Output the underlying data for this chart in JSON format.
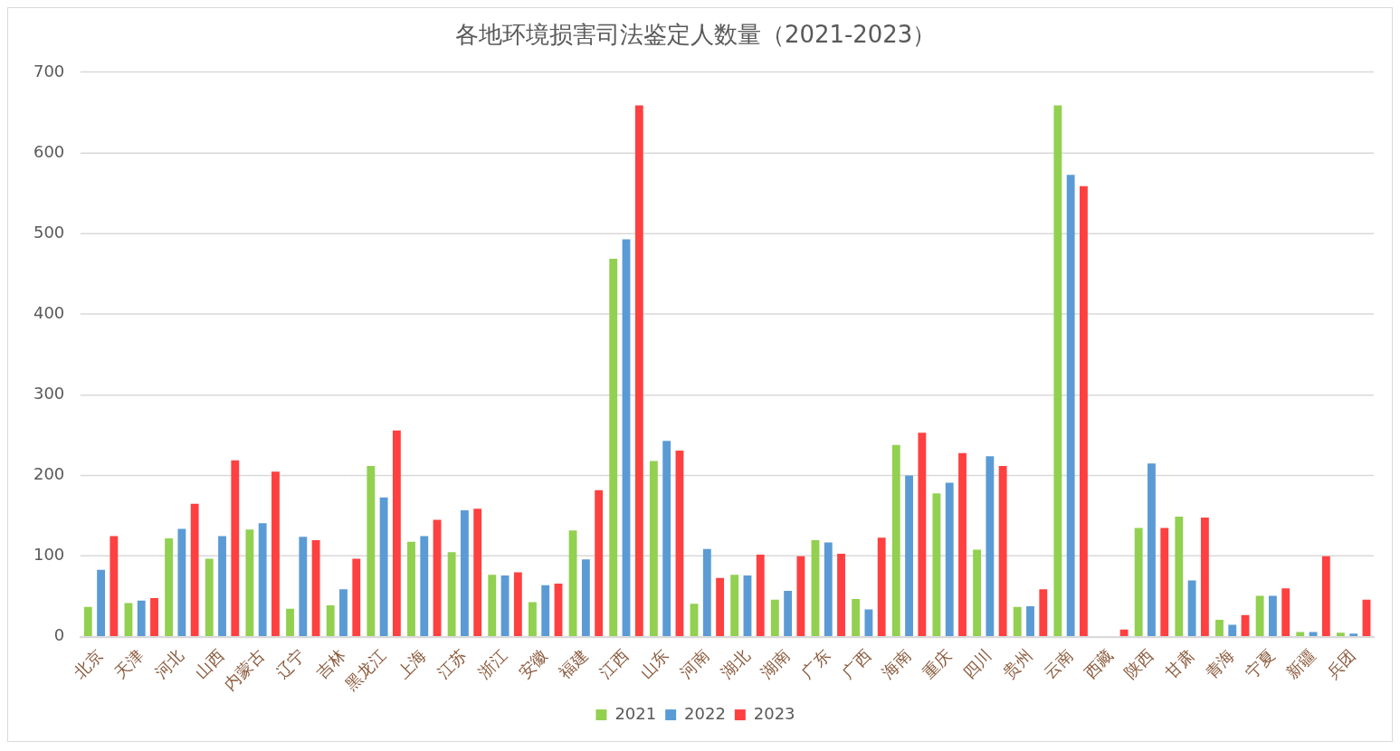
{
  "chart_data": {
    "type": "bar",
    "title": "各地环境损害司法鉴定人数量（2021-2023）",
    "categories": [
      "北京",
      "天津",
      "河北",
      "山西",
      "内蒙古",
      "辽宁",
      "吉林",
      "黑龙江",
      "上海",
      "江苏",
      "浙江",
      "安徽",
      "福建",
      "江西",
      "山东",
      "河南",
      "湖北",
      "湖南",
      "广东",
      "广西",
      "海南",
      "重庆",
      "四川",
      "贵州",
      "云南",
      "西藏",
      "陕西",
      "甘肃",
      "青海",
      "宁夏",
      "新疆",
      "兵团"
    ],
    "series": [
      {
        "name": "2021",
        "color": "#92d050",
        "values": [
          37,
          42,
          122,
          97,
          133,
          35,
          39,
          212,
          118,
          105,
          77,
          43,
          132,
          469,
          218,
          41,
          77,
          46,
          120,
          47,
          238,
          178,
          108,
          37,
          659,
          0,
          135,
          149,
          21,
          51,
          6,
          5
        ]
      },
      {
        "name": "2022",
        "color": "#5b9bd5",
        "values": [
          83,
          45,
          134,
          125,
          141,
          124,
          59,
          173,
          125,
          157,
          76,
          64,
          96,
          493,
          243,
          109,
          76,
          57,
          117,
          34,
          200,
          191,
          224,
          38,
          573,
          0,
          215,
          70,
          15,
          51,
          6,
          4
        ]
      },
      {
        "name": "2023",
        "color": "#ff4040",
        "values": [
          125,
          48,
          165,
          219,
          205,
          120,
          97,
          256,
          145,
          159,
          80,
          66,
          182,
          659,
          231,
          73,
          102,
          100,
          103,
          123,
          253,
          228,
          212,
          59,
          559,
          9,
          135,
          148,
          27,
          60,
          100,
          46
        ]
      }
    ],
    "ylim": [
      0,
      700
    ],
    "yticks": [
      0,
      100,
      200,
      300,
      400,
      500,
      600,
      700
    ],
    "grid": "y",
    "legend": "bottom"
  }
}
